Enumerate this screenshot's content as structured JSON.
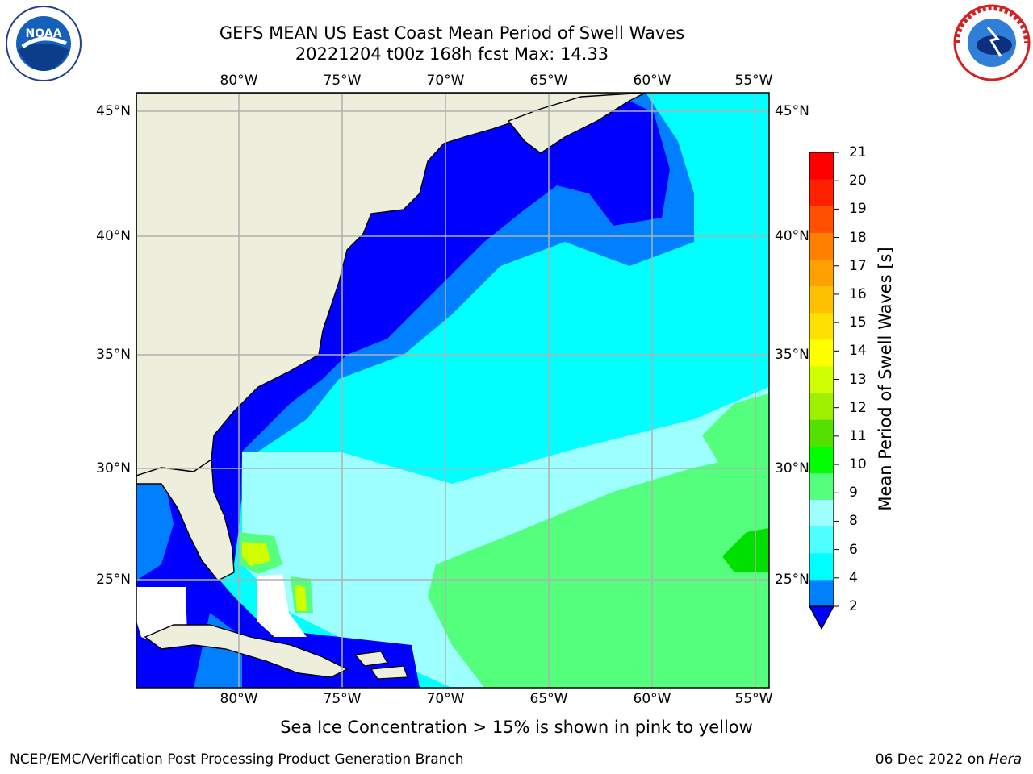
{
  "title": {
    "line1": "GEFS MEAN US East Coast Mean Period of Swell Waves",
    "line2": "20221204 t00z 168h fcst   Max: 14.33"
  },
  "logos": {
    "left": "noaa-logo",
    "right": "nws-logo"
  },
  "map": {
    "lon_labels": [
      "80°W",
      "75°W",
      "70°W",
      "65°W",
      "60°W",
      "55°W"
    ],
    "lat_labels": [
      "45°N",
      "40°N",
      "35°N",
      "30°N",
      "25°N"
    ],
    "colors": {
      "land": "#eeeedd",
      "ice_free_gap": "#ffffff",
      "grid": "#b0b0b0"
    }
  },
  "colorbar": {
    "label": "Mean Period of Swell Waves [s]",
    "ticks": [
      "21",
      "20",
      "19",
      "18",
      "17",
      "16",
      "15",
      "14",
      "13",
      "12",
      "11",
      "10",
      "9",
      "8",
      "6",
      "4",
      "2"
    ],
    "colors": [
      "#0000ff",
      "#0080ff",
      "#00ffff",
      "#4dffff",
      "#9effff",
      "#55ff7e",
      "#00ff00",
      "#55e100",
      "#9fef00",
      "#cfff00",
      "#ffff00",
      "#ffe000",
      "#ffc000",
      "#ffa000",
      "#ff8000",
      "#ff5000",
      "#ff2000",
      "#ff0000"
    ]
  },
  "note": "Sea Ice Concentration > 15% is shown in pink to yellow",
  "footer": {
    "left": "NCEP/EMC/Verification Post Processing Product Generation Branch",
    "right_date": "06 Dec 2022 on",
    "right_host": "Hera"
  }
}
